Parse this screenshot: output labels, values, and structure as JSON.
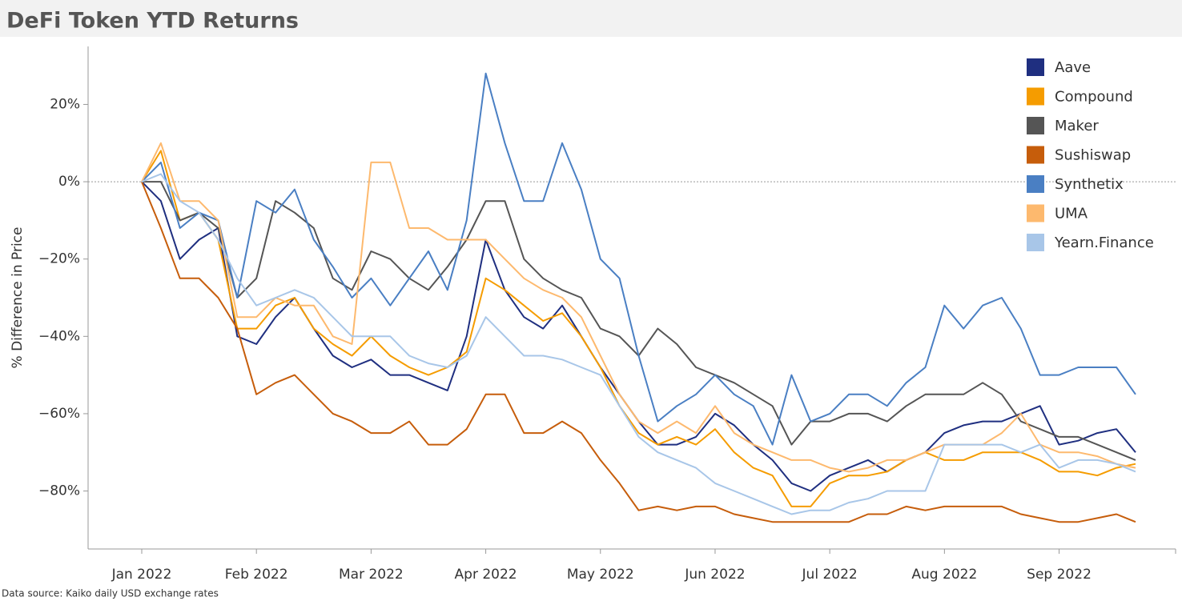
{
  "chart_data": {
    "type": "line",
    "title": "DeFi Token YTD Returns",
    "y_label": "% Difference in Price",
    "source": "Data source: Kaiko daily USD exchange rates",
    "categories": [
      "Jan 2022",
      null,
      null,
      null,
      null,
      null,
      "Feb 2022",
      null,
      null,
      null,
      null,
      null,
      "Mar 2022",
      null,
      null,
      null,
      null,
      null,
      "Apr 2022",
      null,
      null,
      null,
      null,
      null,
      "May 2022",
      null,
      null,
      null,
      null,
      null,
      "Jun 2022",
      null,
      null,
      null,
      null,
      null,
      "Jul 2022",
      null,
      null,
      null,
      null,
      null,
      "Aug 2022",
      null,
      null,
      null,
      null,
      null,
      "Sep 2022",
      null,
      null,
      null,
      null
    ],
    "ylim": [
      -95,
      35
    ],
    "yticks": [
      {
        "value": -80,
        "label": "−80%"
      },
      {
        "value": -60,
        "label": "−60%"
      },
      {
        "value": -40,
        "label": "−40%"
      },
      {
        "value": -20,
        "label": "−20%"
      },
      {
        "value": 0,
        "label": "0%"
      },
      {
        "value": 20,
        "label": "20%"
      }
    ],
    "baseline": 0,
    "legend": "top-right",
    "series": [
      {
        "name": "Aave",
        "color": "#1f2f80",
        "values": [
          0,
          -5,
          -20,
          -15,
          -12,
          -40,
          -42,
          -35,
          -30,
          -38,
          -45,
          -48,
          -46,
          -50,
          -50,
          -52,
          -54,
          -40,
          -15,
          -28,
          -35,
          -38,
          -32,
          -40,
          -48,
          -55,
          -62,
          -68,
          -68,
          -66,
          -60,
          -63,
          -68,
          -72,
          -78,
          -80,
          -76,
          -74,
          -72,
          -75,
          -72,
          -70,
          -65,
          -63,
          -62,
          -62,
          -60,
          -58,
          -68,
          -67,
          -65,
          -64,
          -70
        ]
      },
      {
        "name": "Compound",
        "color": "#f59c00",
        "values": [
          0,
          8,
          -10,
          -8,
          -15,
          -38,
          -38,
          -32,
          -30,
          -38,
          -42,
          -45,
          -40,
          -45,
          -48,
          -50,
          -48,
          -44,
          -25,
          -28,
          -32,
          -36,
          -34,
          -40,
          -48,
          -58,
          -65,
          -68,
          -66,
          -68,
          -64,
          -70,
          -74,
          -76,
          -84,
          -84,
          -78,
          -76,
          -76,
          -75,
          -72,
          -70,
          -72,
          -72,
          -70,
          -70,
          -70,
          -72,
          -75,
          -75,
          -76,
          -74,
          -73
        ]
      },
      {
        "name": "Maker",
        "color": "#555555",
        "values": [
          0,
          0,
          -10,
          -8,
          -12,
          -30,
          -25,
          -5,
          -8,
          -12,
          -25,
          -28,
          -18,
          -20,
          -25,
          -28,
          -22,
          -15,
          -5,
          -5,
          -20,
          -25,
          -28,
          -30,
          -38,
          -40,
          -45,
          -38,
          -42,
          -48,
          -50,
          -52,
          -55,
          -58,
          -68,
          -62,
          -62,
          -60,
          -60,
          -62,
          -58,
          -55,
          -55,
          -55,
          -52,
          -55,
          -62,
          -64,
          -66,
          -66,
          -68,
          -70,
          -72
        ]
      },
      {
        "name": "Sushiswap",
        "color": "#c65d0b",
        "values": [
          0,
          -12,
          -25,
          -25,
          -30,
          -38,
          -55,
          -52,
          -50,
          -55,
          -60,
          -62,
          -65,
          -65,
          -62,
          -68,
          -68,
          -64,
          -55,
          -55,
          -65,
          -65,
          -62,
          -65,
          -72,
          -78,
          -85,
          -84,
          -85,
          -84,
          -84,
          -86,
          -87,
          -88,
          -88,
          -88,
          -88,
          -88,
          -86,
          -86,
          -84,
          -85,
          -84,
          -84,
          -84,
          -84,
          -86,
          -87,
          -88,
          -88,
          -87,
          -86,
          -88
        ]
      },
      {
        "name": "Synthetix",
        "color": "#4a7fc3",
        "values": [
          0,
          5,
          -12,
          -8,
          -10,
          -30,
          -5,
          -8,
          -2,
          -15,
          -22,
          -30,
          -25,
          -32,
          -25,
          -18,
          -28,
          -10,
          28,
          10,
          -5,
          -5,
          10,
          -2,
          -20,
          -25,
          -45,
          -62,
          -58,
          -55,
          -50,
          -55,
          -58,
          -68,
          -50,
          -62,
          -60,
          -55,
          -55,
          -58,
          -52,
          -48,
          -32,
          -38,
          -32,
          -30,
          -38,
          -50,
          -50,
          -48,
          -48,
          -48,
          -55
        ]
      },
      {
        "name": "UMA",
        "color": "#fdb96e",
        "values": [
          0,
          10,
          -5,
          -5,
          -10,
          -35,
          -35,
          -30,
          -32,
          -32,
          -40,
          -42,
          5,
          5,
          -12,
          -12,
          -15,
          -15,
          -15,
          -20,
          -25,
          -28,
          -30,
          -35,
          -45,
          -55,
          -62,
          -65,
          -62,
          -65,
          -58,
          -65,
          -68,
          -70,
          -72,
          -72,
          -74,
          -75,
          -74,
          -72,
          -72,
          -70,
          -68,
          -68,
          -68,
          -65,
          -60,
          -68,
          -70,
          -70,
          -71,
          -73,
          -74
        ]
      },
      {
        "name": "Yearn.Finance",
        "color": "#a8c6e8",
        "values": [
          0,
          2,
          -5,
          -8,
          -15,
          -25,
          -32,
          -30,
          -28,
          -30,
          -35,
          -40,
          -40,
          -40,
          -45,
          -47,
          -48,
          -45,
          -35,
          -40,
          -45,
          -45,
          -46,
          -48,
          -50,
          -58,
          -66,
          -70,
          -72,
          -74,
          -78,
          -80,
          -82,
          -84,
          -86,
          -85,
          -85,
          -83,
          -82,
          -80,
          -80,
          -80,
          -68,
          -68,
          -68,
          -68,
          -70,
          -68,
          -74,
          -72,
          -72,
          -73,
          -75
        ]
      }
    ]
  }
}
